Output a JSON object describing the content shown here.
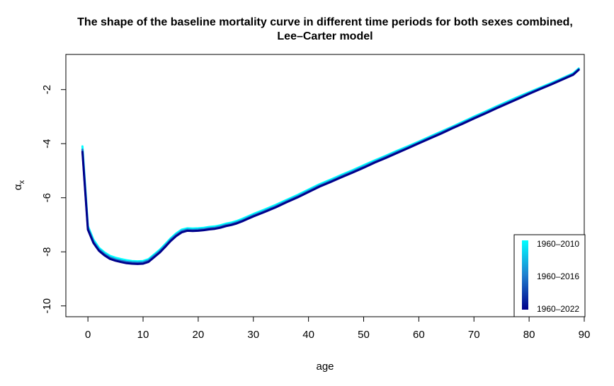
{
  "chart_data": {
    "type": "line",
    "title": "The shape of the baseline mortality curve in different time periods for both sexes combined,",
    "subtitle": "Lee–Carter model",
    "xlabel": "age",
    "ylabel": "αx",
    "ylabel_main": "α",
    "ylabel_sub": "x",
    "xlim": [
      -4,
      90
    ],
    "ylim": [
      -10.4,
      -0.7
    ],
    "xticks": [
      0,
      10,
      20,
      30,
      40,
      50,
      60,
      70,
      80,
      90
    ],
    "xtick_labels": [
      "0",
      "10",
      "20",
      "30",
      "40",
      "50",
      "60",
      "70",
      "80",
      "90"
    ],
    "yticks": [
      -10,
      -8,
      -6,
      -4,
      -2
    ],
    "ytick_labels": [
      "-10",
      "-8",
      "-6",
      "-4",
      "-2"
    ],
    "grid": false,
    "legend_position": "bottom-right",
    "legend": {
      "labels": [
        "1960–2010",
        "1960–2016",
        "1960–2022"
      ],
      "colors": [
        "#00ffff",
        "#1f7fcf",
        "#00008b"
      ]
    },
    "x": [
      -1,
      0,
      1,
      2,
      3,
      4,
      5,
      6,
      7,
      8,
      9,
      10,
      11,
      12,
      13,
      14,
      15,
      16,
      17,
      18,
      19,
      20,
      21,
      22,
      23,
      24,
      25,
      26,
      27,
      28,
      29,
      30,
      32,
      34,
      36,
      38,
      40,
      42,
      44,
      46,
      48,
      50,
      52,
      54,
      56,
      58,
      60,
      62,
      64,
      66,
      68,
      70,
      72,
      74,
      76,
      78,
      80,
      82,
      84,
      86,
      88,
      89
    ],
    "series": [
      {
        "name": "1960–2010",
        "color": "#00ffff",
        "values": [
          -4.1,
          -7.05,
          -7.55,
          -7.85,
          -8.02,
          -8.15,
          -8.22,
          -8.27,
          -8.31,
          -8.34,
          -8.35,
          -8.34,
          -8.27,
          -8.1,
          -7.93,
          -7.72,
          -7.5,
          -7.32,
          -7.18,
          -7.13,
          -7.14,
          -7.13,
          -7.11,
          -7.08,
          -7.06,
          -7.02,
          -6.96,
          -6.92,
          -6.86,
          -6.78,
          -6.69,
          -6.6,
          -6.44,
          -6.27,
          -6.08,
          -5.9,
          -5.7,
          -5.5,
          -5.33,
          -5.15,
          -4.98,
          -4.8,
          -4.62,
          -4.45,
          -4.27,
          -4.1,
          -3.92,
          -3.74,
          -3.56,
          -3.38,
          -3.19,
          -3.0,
          -2.82,
          -2.63,
          -2.45,
          -2.27,
          -2.1,
          -1.93,
          -1.76,
          -1.58,
          -1.4,
          -1.22
        ]
      },
      {
        "name": "1960–2016",
        "color": "#1f7fcf",
        "values": [
          -4.22,
          -7.12,
          -7.62,
          -7.91,
          -8.08,
          -8.21,
          -8.28,
          -8.33,
          -8.37,
          -8.39,
          -8.4,
          -8.39,
          -8.32,
          -8.15,
          -7.98,
          -7.77,
          -7.55,
          -7.37,
          -7.23,
          -7.18,
          -7.19,
          -7.18,
          -7.16,
          -7.13,
          -7.11,
          -7.07,
          -7.01,
          -6.97,
          -6.91,
          -6.83,
          -6.74,
          -6.65,
          -6.49,
          -6.32,
          -6.13,
          -5.95,
          -5.75,
          -5.55,
          -5.38,
          -5.2,
          -5.03,
          -4.85,
          -4.67,
          -4.49,
          -4.31,
          -4.14,
          -3.96,
          -3.78,
          -3.6,
          -3.41,
          -3.23,
          -3.04,
          -2.86,
          -2.67,
          -2.49,
          -2.31,
          -2.13,
          -1.96,
          -1.79,
          -1.61,
          -1.43,
          -1.25
        ]
      },
      {
        "name": "1960–2022",
        "color": "#00008b",
        "values": [
          -4.3,
          -7.18,
          -7.67,
          -7.96,
          -8.13,
          -8.26,
          -8.33,
          -8.38,
          -8.42,
          -8.44,
          -8.45,
          -8.44,
          -8.37,
          -8.2,
          -8.03,
          -7.82,
          -7.6,
          -7.42,
          -7.28,
          -7.22,
          -7.23,
          -7.22,
          -7.2,
          -7.17,
          -7.15,
          -7.11,
          -7.05,
          -7.01,
          -6.95,
          -6.87,
          -6.78,
          -6.69,
          -6.53,
          -6.36,
          -6.17,
          -5.99,
          -5.79,
          -5.59,
          -5.42,
          -5.24,
          -5.07,
          -4.89,
          -4.7,
          -4.53,
          -4.35,
          -4.17,
          -3.99,
          -3.81,
          -3.63,
          -3.44,
          -3.26,
          -3.07,
          -2.89,
          -2.7,
          -2.52,
          -2.34,
          -2.16,
          -1.98,
          -1.81,
          -1.63,
          -1.45,
          -1.27
        ]
      }
    ]
  }
}
